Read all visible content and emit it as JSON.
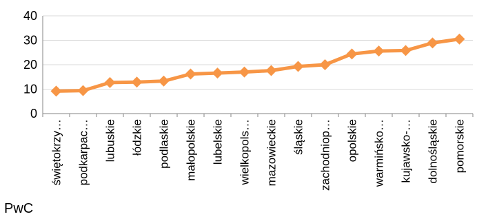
{
  "chart_data": {
    "type": "line",
    "categories": [
      "świętokrzy…",
      "podkarpac…",
      "lubuskie",
      "łódzkie",
      "podlaskie",
      "małopolskie",
      "lubelskie",
      "wielkopols…",
      "mazowieckie",
      "śląskie",
      "zachodniop…",
      "opolskie",
      "warmińsko…",
      "kujawsko-…",
      "dolnośląskie",
      "pomorskie"
    ],
    "series": [
      {
        "values": [
          9.2,
          9.4,
          12.7,
          12.9,
          13.3,
          16.2,
          16.6,
          17.0,
          17.6,
          19.3,
          20.0,
          24.4,
          25.6,
          25.8,
          28.9,
          30.5
        ],
        "color": "#f79646"
      }
    ],
    "ylim": [
      0,
      40
    ],
    "yticks": [
      0,
      10,
      20,
      30,
      40
    ],
    "grid": true,
    "legend": "none"
  },
  "source_label": "PwC"
}
